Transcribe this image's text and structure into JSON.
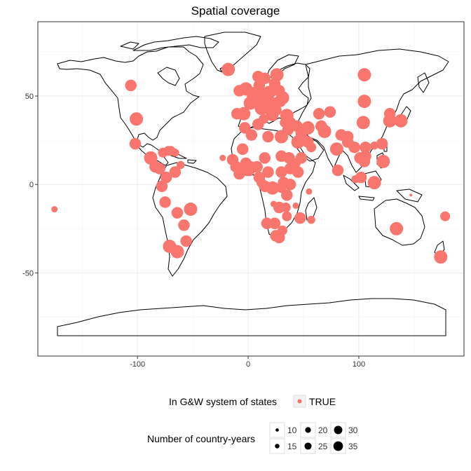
{
  "chart_data": {
    "type": "scatter",
    "title": "Spatial coverage",
    "xlabel": "",
    "ylabel": "",
    "xlim": [
      -190,
      195
    ],
    "ylim": [
      -97,
      92
    ],
    "x_ticks": [
      -100,
      0,
      100
    ],
    "y_ticks": [
      50,
      0,
      -50
    ],
    "grid": true,
    "colors": {
      "point": "#f8766d",
      "land": "#000000",
      "grid": "#ebebeb",
      "frame": "#333333"
    },
    "legend": {
      "position": "bottom",
      "color_title": "In G&W system of states",
      "color_entries": [
        "TRUE"
      ],
      "size_title": "Number of country-years",
      "size_entries": [
        10,
        15,
        20,
        25,
        30,
        35
      ]
    },
    "series": [
      {
        "name": "TRUE",
        "points": [
          [
            -106,
            56,
            30
          ],
          [
            -101,
            37,
            35
          ],
          [
            -102,
            23,
            30
          ],
          [
            -88,
            15,
            35
          ],
          [
            -84,
            10,
            30
          ],
          [
            -80,
            9,
            30
          ],
          [
            -77,
            18,
            25
          ],
          [
            -72,
            19,
            25
          ],
          [
            -70,
            19,
            25
          ],
          [
            -66,
            18,
            20
          ],
          [
            -61,
            11,
            20
          ],
          [
            -74,
            4,
            30
          ],
          [
            -66,
            7,
            30
          ],
          [
            -78,
            -1,
            30
          ],
          [
            -75,
            -10,
            30
          ],
          [
            -64,
            -16,
            30
          ],
          [
            -58,
            -23,
            30
          ],
          [
            -52,
            -14,
            35
          ],
          [
            -56,
            -32,
            30
          ],
          [
            -71,
            -35,
            35
          ],
          [
            -64,
            -38,
            35
          ],
          [
            -175,
            -14,
            15
          ],
          [
            -23,
            15,
            15
          ],
          [
            -14,
            14,
            30
          ],
          [
            -11,
            10,
            30
          ],
          [
            -8,
            6,
            30
          ],
          [
            -5,
            8,
            30
          ],
          [
            -2,
            12,
            30
          ],
          [
            1,
            8,
            30
          ],
          [
            2,
            10,
            30
          ],
          [
            8,
            10,
            30
          ],
          [
            10,
            4,
            30
          ],
          [
            12,
            1,
            25
          ],
          [
            15,
            15,
            30
          ],
          [
            18,
            7,
            30
          ],
          [
            22,
            -2,
            35
          ],
          [
            15,
            -1,
            30
          ],
          [
            -1,
            8,
            30
          ],
          [
            -5,
            20,
            30
          ],
          [
            -3,
            32,
            30
          ],
          [
            3,
            28,
            30
          ],
          [
            9,
            34,
            30
          ],
          [
            18,
            27,
            30
          ],
          [
            30,
            27,
            35
          ],
          [
            30,
            16,
            30
          ],
          [
            30,
            7,
            30
          ],
          [
            38,
            9,
            30
          ],
          [
            37,
            15,
            30
          ],
          [
            45,
            7,
            30
          ],
          [
            43,
            12,
            25
          ],
          [
            38,
            0,
            30
          ],
          [
            32,
            1,
            30
          ],
          [
            30,
            -2,
            25
          ],
          [
            35,
            -6,
            30
          ],
          [
            28,
            -13,
            30
          ],
          [
            34,
            -13,
            25
          ],
          [
            35,
            -18,
            25
          ],
          [
            24,
            -22,
            30
          ],
          [
            17,
            -22,
            30
          ],
          [
            25,
            -29,
            30
          ],
          [
            31,
            -26,
            25
          ],
          [
            28,
            -30,
            30
          ],
          [
            47,
            -19,
            30
          ],
          [
            57,
            -20,
            20
          ],
          [
            55,
            -4,
            15
          ],
          [
            43,
            -12,
            15
          ],
          [
            23,
            -11,
            15
          ],
          [
            -10,
            40,
            30
          ],
          [
            -4,
            40,
            35
          ],
          [
            2,
            46,
            35
          ],
          [
            -8,
            53,
            30
          ],
          [
            -2,
            54,
            35
          ],
          [
            4,
            50,
            30
          ],
          [
            6,
            52,
            30
          ],
          [
            10,
            51,
            35
          ],
          [
            8,
            47,
            30
          ],
          [
            12,
            43,
            35
          ],
          [
            15,
            47,
            30
          ],
          [
            19,
            47,
            30
          ],
          [
            15,
            50,
            30
          ],
          [
            19,
            52,
            35
          ],
          [
            25,
            46,
            30
          ],
          [
            21,
            44,
            30
          ],
          [
            22,
            39,
            30
          ],
          [
            25,
            42,
            30
          ],
          [
            20,
            41,
            25
          ],
          [
            17,
            43,
            30
          ],
          [
            15,
            45,
            30
          ],
          [
            14,
            37,
            25
          ],
          [
            10,
            56,
            30
          ],
          [
            15,
            60,
            30
          ],
          [
            9,
            61,
            30
          ],
          [
            26,
            62,
            35
          ],
          [
            24,
            57,
            30
          ],
          [
            25,
            54,
            30
          ],
          [
            24,
            55,
            30
          ],
          [
            28,
            53,
            30
          ],
          [
            31,
            49,
            35
          ],
          [
            29,
            47,
            30
          ],
          [
            35,
            39,
            35
          ],
          [
            33,
            35,
            25
          ],
          [
            36,
            31,
            30
          ],
          [
            38,
            35,
            30
          ],
          [
            44,
            33,
            30
          ],
          [
            54,
            32,
            35
          ],
          [
            45,
            24,
            35
          ],
          [
            48,
            29,
            30
          ],
          [
            51,
            25,
            30
          ],
          [
            54,
            24,
            30
          ],
          [
            57,
            21,
            25
          ],
          [
            48,
            15,
            30
          ],
          [
            66,
            33,
            30
          ],
          [
            69,
            30,
            35
          ],
          [
            74,
            41,
            30
          ],
          [
            64,
            40,
            30
          ],
          [
            80,
            20,
            35
          ],
          [
            84,
            28,
            30
          ],
          [
            90,
            24,
            30
          ],
          [
            90,
            27,
            30
          ],
          [
            81,
            8,
            30
          ],
          [
            96,
            21,
            30
          ],
          [
            101,
            15,
            30
          ],
          [
            105,
            13,
            30
          ],
          [
            106,
            16,
            30
          ],
          [
            106,
            21,
            30
          ],
          [
            102,
            4,
            30
          ],
          [
            114,
            1,
            35
          ],
          [
            104,
            35,
            35
          ],
          [
            105,
            47,
            35
          ],
          [
            105,
            62,
            35
          ],
          [
            128,
            40,
            30
          ],
          [
            128,
            36,
            35
          ],
          [
            138,
            36,
            35
          ],
          [
            121,
            23,
            30
          ],
          [
            122,
            13,
            35
          ],
          [
            134,
            -25,
            35
          ],
          [
            174,
            -41,
            35
          ],
          [
            178,
            -18,
            25
          ],
          [
            147,
            -6,
            5
          ],
          [
            -18,
            65,
            35
          ],
          [
            97,
            3,
            20
          ],
          [
            114,
            22,
            20
          ]
        ]
      }
    ]
  }
}
